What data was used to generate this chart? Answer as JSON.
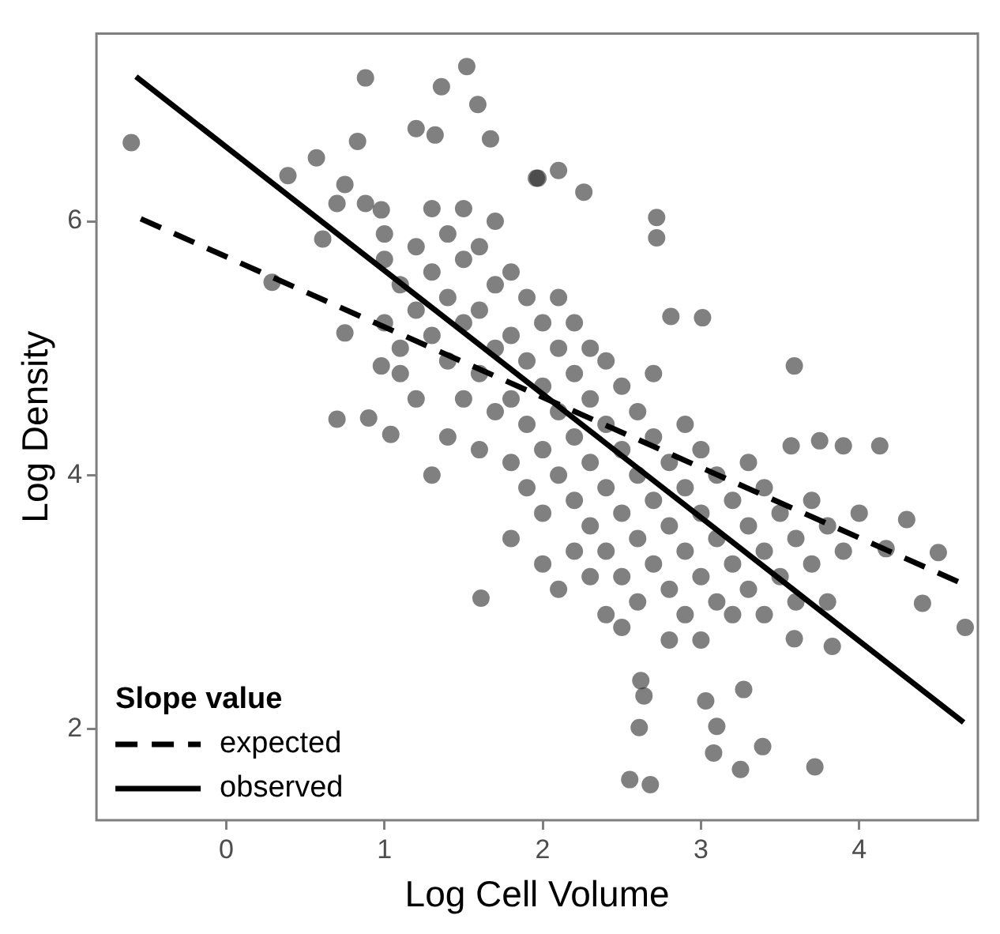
{
  "chart_data": {
    "type": "scatter",
    "xlabel": "Log Cell Volume",
    "ylabel": "Log Density",
    "legend_title": "Slope value",
    "xlim": [
      -0.82,
      4.75
    ],
    "ylim": [
      1.28,
      7.48
    ],
    "xticks": [
      0,
      1,
      2,
      3,
      4
    ],
    "yticks": [
      2,
      4,
      6
    ],
    "grid": false,
    "legend": "bottom left",
    "marker": "circle",
    "series": [
      {
        "color": "#2b2b2b",
        "x": [
          -0.6,
          0.29,
          0.88,
          1.36,
          1.52,
          1.59,
          0.83,
          0.57,
          0.39,
          0.61,
          0.75,
          0.7,
          1.04,
          0.9,
          0.98,
          1.2,
          1.32,
          1.67,
          1.96,
          0.75,
          0.7,
          0.88,
          0.98,
          1.61,
          2.55,
          2.68,
          2.62,
          2.64,
          2.61,
          3.08,
          3.25,
          3.39,
          3.72,
          3.03,
          3.1,
          3.27,
          4.67,
          4.4,
          4.5,
          4.3,
          4.17,
          3.83,
          3.59,
          4.13,
          3.9,
          3.75,
          3.57,
          3.59,
          3.01,
          2.81,
          2.72,
          2.72,
          2.1,
          1.97,
          2.26,
          1.0,
          1.0,
          1.0,
          1.1,
          1.1,
          1.1,
          1.2,
          1.2,
          1.2,
          1.3,
          1.3,
          1.3,
          1.3,
          1.4,
          1.4,
          1.4,
          1.4,
          1.5,
          1.5,
          1.5,
          1.5,
          1.6,
          1.6,
          1.6,
          1.6,
          1.7,
          1.7,
          1.7,
          1.7,
          1.8,
          1.8,
          1.8,
          1.8,
          1.8,
          1.9,
          1.9,
          1.9,
          1.9,
          2.0,
          2.0,
          2.0,
          2.0,
          2.0,
          2.1,
          2.1,
          2.1,
          2.1,
          2.1,
          2.2,
          2.2,
          2.2,
          2.2,
          2.2,
          2.3,
          2.3,
          2.3,
          2.3,
          2.3,
          2.4,
          2.4,
          2.4,
          2.4,
          2.4,
          2.5,
          2.5,
          2.5,
          2.5,
          2.5,
          2.6,
          2.6,
          2.6,
          2.6,
          2.7,
          2.7,
          2.7,
          2.7,
          2.8,
          2.8,
          2.8,
          2.8,
          2.9,
          2.9,
          2.9,
          2.9,
          3.0,
          3.0,
          3.0,
          3.0,
          3.1,
          3.1,
          3.1,
          3.2,
          3.2,
          3.2,
          3.3,
          3.3,
          3.3,
          3.4,
          3.4,
          3.4,
          3.5,
          3.5,
          3.6,
          3.6,
          3.7,
          3.7,
          3.8,
          3.8,
          3.9,
          4.0
        ],
        "values": [
          6.62,
          5.52,
          7.13,
          7.06,
          7.22,
          6.92,
          6.63,
          6.5,
          6.36,
          5.86,
          5.12,
          4.44,
          4.32,
          4.45,
          4.86,
          6.73,
          6.68,
          6.65,
          6.34,
          6.29,
          6.14,
          6.14,
          6.09,
          3.03,
          1.6,
          1.56,
          2.38,
          2.26,
          2.01,
          1.81,
          1.68,
          1.86,
          1.7,
          2.22,
          2.02,
          2.31,
          2.8,
          2.99,
          3.39,
          3.65,
          3.42,
          2.65,
          2.71,
          4.23,
          4.23,
          4.27,
          4.23,
          4.86,
          5.24,
          5.25,
          6.03,
          5.87,
          6.4,
          6.34,
          6.23,
          5.7,
          5.2,
          5.9,
          5.0,
          5.5,
          4.8,
          5.3,
          5.8,
          4.6,
          5.1,
          5.6,
          6.1,
          4.0,
          4.9,
          5.4,
          5.9,
          4.3,
          5.2,
          5.7,
          4.6,
          6.1,
          4.8,
          5.3,
          5.8,
          4.2,
          5.0,
          5.5,
          4.5,
          6.0,
          4.6,
          5.1,
          5.6,
          4.1,
          3.5,
          4.4,
          4.9,
          5.4,
          3.9,
          4.2,
          4.7,
          5.2,
          3.7,
          3.3,
          4.5,
          5.0,
          4.0,
          5.4,
          3.1,
          4.3,
          4.8,
          3.8,
          5.2,
          3.4,
          4.1,
          4.6,
          3.6,
          5.0,
          3.2,
          4.4,
          3.9,
          4.9,
          3.4,
          2.9,
          4.2,
          3.7,
          4.7,
          3.2,
          2.8,
          4.0,
          3.5,
          4.5,
          3.0,
          3.8,
          4.3,
          3.3,
          4.8,
          3.6,
          4.1,
          3.1,
          2.7,
          3.9,
          3.4,
          4.4,
          2.9,
          3.7,
          3.2,
          4.2,
          2.7,
          3.5,
          4.0,
          3.0,
          3.3,
          3.8,
          2.9,
          3.6,
          4.1,
          3.1,
          3.4,
          3.9,
          2.9,
          3.7,
          3.2,
          3.5,
          3.0,
          3.8,
          3.3,
          3.6,
          3.0,
          3.4,
          3.7
        ]
      },
      {
        "type": "line",
        "name": "expected",
        "color": "#000000",
        "line_style": "dashed",
        "marker": "none",
        "x": [
          -0.54,
          4.66
        ],
        "values": [
          6.02,
          3.14
        ]
      },
      {
        "type": "line",
        "name": "observed",
        "color": "#000000",
        "line_style": "solid",
        "marker": "none",
        "x": [
          -0.57,
          4.66
        ],
        "values": [
          7.14,
          2.05
        ]
      }
    ]
  }
}
